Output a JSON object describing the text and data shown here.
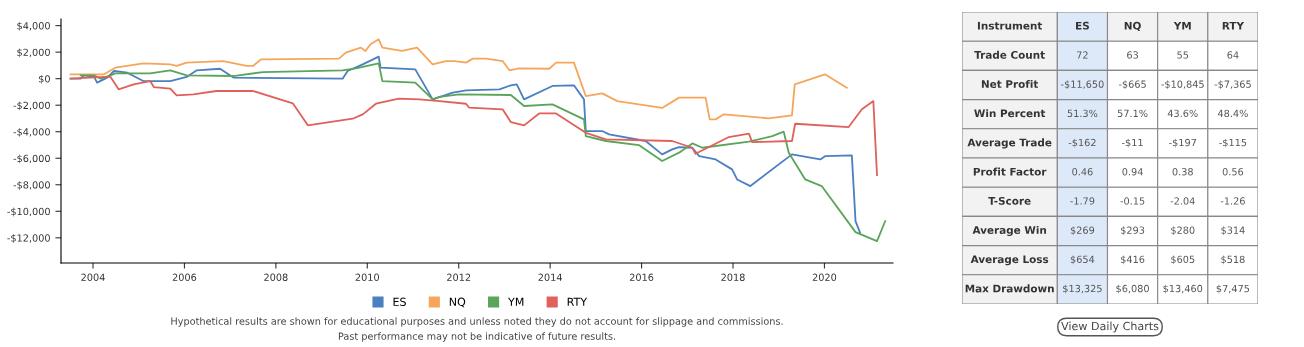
{
  "chart_data": [
    {
      "type": "line",
      "xlim": [
        2003.3,
        2021.5
      ],
      "xticks": [
        2004,
        2006,
        2008,
        2010,
        2012,
        2014,
        2016,
        2018,
        2020
      ],
      "ylim": [
        -13900,
        4500
      ],
      "yticks": [
        {
          "value": 4000,
          "label": "$4,000"
        },
        {
          "value": 2000,
          "label": "$2,000"
        },
        {
          "value": 0,
          "label": "$0"
        },
        {
          "value": -2000,
          "label": "-$2,000"
        },
        {
          "value": -4000,
          "label": "-$4,000"
        },
        {
          "value": -6000,
          "label": "-$6,000"
        },
        {
          "value": -8000,
          "label": "-$8,000"
        },
        {
          "value": -10000,
          "label": "-$10,000"
        },
        {
          "value": -12000,
          "label": "-$12,000"
        }
      ],
      "grid": false,
      "legend": "bottom",
      "marker": "none",
      "line_style": "solid",
      "series": [
        {
          "name": "ES",
          "color": "#4a7fc1",
          "x": [
            2003.51,
            2003.73,
            2003.8,
            2004.02,
            2004.09,
            2004.31,
            2004.46,
            2004.75,
            2005.1,
            2005.69,
            2006.05,
            2006.27,
            2006.78,
            2007.07,
            2009.46,
            2009.57,
            2009.9,
            2010.25,
            2010.29,
            2011.05,
            2011.43,
            2011.87,
            2012.16,
            2012.89,
            2013.14,
            2013.27,
            2013.43,
            2014.05,
            2014.52,
            2014.74,
            2014.78,
            2015.14,
            2015.29,
            2016.09,
            2016.45,
            2016.67,
            2016.82,
            2017.11,
            2017.26,
            2017.62,
            2017.98,
            2018.09,
            2018.38,
            2019.29,
            2019.91,
            2020.02,
            2020.6,
            2020.68,
            2020.78
          ],
          "values": [
            0,
            0,
            250,
            150,
            -300,
            80,
            580,
            450,
            -180,
            -180,
            130,
            630,
            750,
            80,
            0,
            580,
            1080,
            1660,
            830,
            700,
            -1560,
            -1060,
            -880,
            -800,
            -500,
            -430,
            -1560,
            -550,
            -500,
            -1560,
            -3950,
            -3950,
            -4200,
            -4700,
            -5710,
            -5330,
            -5160,
            -5210,
            -5840,
            -6090,
            -6840,
            -7600,
            -8100,
            -5710,
            -6090,
            -5840,
            -5790,
            -10740,
            -11620
          ]
        },
        {
          "name": "NQ",
          "color": "#f5a65b",
          "x": [
            2003.51,
            2004.24,
            2004.49,
            2005.1,
            2005.69,
            2005.83,
            2006.05,
            2006.85,
            2007.36,
            2007.5,
            2007.68,
            2009.38,
            2009.53,
            2009.86,
            2009.96,
            2010.07,
            2010.25,
            2010.33,
            2010.76,
            2011.09,
            2011.43,
            2011.72,
            2011.91,
            2012.16,
            2012.31,
            2012.6,
            2012.96,
            2013.11,
            2013.32,
            2013.98,
            2014.13,
            2014.52,
            2014.78,
            2015.14,
            2015.47,
            2015.94,
            2016.45,
            2016.82,
            2017.4,
            2017.49,
            2017.62,
            2017.8,
            2018.78,
            2019.29,
            2019.35,
            2020.01,
            2020.49
          ],
          "values": [
            330,
            330,
            830,
            1160,
            1080,
            960,
            1210,
            1330,
            960,
            960,
            1460,
            1510,
            1960,
            2340,
            2090,
            2590,
            2970,
            2340,
            2090,
            2340,
            1080,
            1330,
            1330,
            1210,
            1510,
            1510,
            1330,
            630,
            780,
            750,
            1210,
            1210,
            -1310,
            -1110,
            -1690,
            -1940,
            -2210,
            -1430,
            -1430,
            -3070,
            -3070,
            -2690,
            -2990,
            -2770,
            -430,
            330,
            -680
          ]
        },
        {
          "name": "YM",
          "color": "#5aa55a",
          "x": [
            2003.73,
            2004.02,
            2004.17,
            2004.38,
            2004.49,
            2005.25,
            2005.69,
            2006.05,
            2007.07,
            2007.72,
            2009.46,
            2009.75,
            2010.25,
            2010.33,
            2011.05,
            2011.43,
            2011.58,
            2012.01,
            2013.14,
            2013.43,
            2014.05,
            2014.74,
            2014.78,
            2015.22,
            2015.94,
            2016.45,
            2016.82,
            2017.11,
            2017.33,
            2018.35,
            2018.86,
            2019.11,
            2019.22,
            2019.58,
            2019.94,
            2020.68,
            2021.15,
            2021.33
          ],
          "values": [
            250,
            250,
            0,
            250,
            400,
            400,
            630,
            250,
            200,
            500,
            630,
            780,
            1160,
            -180,
            -300,
            -1560,
            -1380,
            -1180,
            -1230,
            -2060,
            -1940,
            -3070,
            -4330,
            -4700,
            -5010,
            -6210,
            -5580,
            -4880,
            -5210,
            -4750,
            -4330,
            -4000,
            -5580,
            -7600,
            -8100,
            -11570,
            -12250,
            -10740
          ]
        },
        {
          "name": "RTY",
          "color": "#e0605a",
          "x": [
            2003.51,
            2004.38,
            2004.56,
            2004.89,
            2005.25,
            2005.33,
            2005.69,
            2005.83,
            2006.2,
            2006.7,
            2007.5,
            2008.37,
            2008.7,
            2009.68,
            2009.9,
            2010.19,
            2010.69,
            2011.14,
            2011.58,
            2012.16,
            2012.23,
            2012.96,
            2013.14,
            2013.43,
            2013.76,
            2014.13,
            2014.78,
            2015.22,
            2016.67,
            2017.11,
            2017.18,
            2017.91,
            2018.35,
            2018.42,
            2019.29,
            2019.36,
            2020.53,
            2020.82,
            2021.07,
            2021.15
          ],
          "values": [
            0,
            150,
            -800,
            -430,
            -180,
            -630,
            -750,
            -1260,
            -1180,
            -930,
            -930,
            -1860,
            -3520,
            -3020,
            -2690,
            -1890,
            -1510,
            -1560,
            -1690,
            -1890,
            -2190,
            -2310,
            -3270,
            -3520,
            -2620,
            -2620,
            -4080,
            -4580,
            -4700,
            -5210,
            -5660,
            -4400,
            -4150,
            -4780,
            -4700,
            -3400,
            -3650,
            -2310,
            -1690,
            -7270
          ]
        }
      ],
      "annotations": [
        "Hypothetical results are shown for educational purposes and unless noted they do not account for slippage and commissions.",
        "Past performance may not be indicative of future results."
      ]
    },
    {
      "type": "other",
      "xlabel": "Instrument",
      "categories": [
        "ES",
        "NQ",
        "YM",
        "RTY"
      ],
      "colors": [
        "#dde9f9",
        "#ffffff",
        "#ffffff",
        "#ffffff"
      ],
      "y_categories": [
        "Trade Count",
        "Net Profit",
        "Win Percent",
        "Average Trade",
        "Profit Factor",
        "T-Score",
        "Average Win",
        "Average Loss",
        "Max Drawdown"
      ],
      "cell_labels": [
        [
          "72",
          "63",
          "55",
          "64"
        ],
        [
          "-$11,650",
          "-$665",
          "-$10,845",
          "-$7,365"
        ],
        [
          "51.3%",
          "57.1%",
          "43.6%",
          "48.4%"
        ],
        [
          "-$162",
          "-$11",
          "-$197",
          "-$115"
        ],
        [
          "0.46",
          "0.94",
          "0.38",
          "0.56"
        ],
        [
          "-1.79",
          "-0.15",
          "-2.04",
          "-1.26"
        ],
        [
          "$269",
          "$293",
          "$280",
          "$314"
        ],
        [
          "$654",
          "$416",
          "$605",
          "$518"
        ],
        [
          "$13,325",
          "$6,080",
          "$13,460",
          "$7,475"
        ]
      ],
      "annotations": [
        "View Daily Charts"
      ]
    }
  ]
}
